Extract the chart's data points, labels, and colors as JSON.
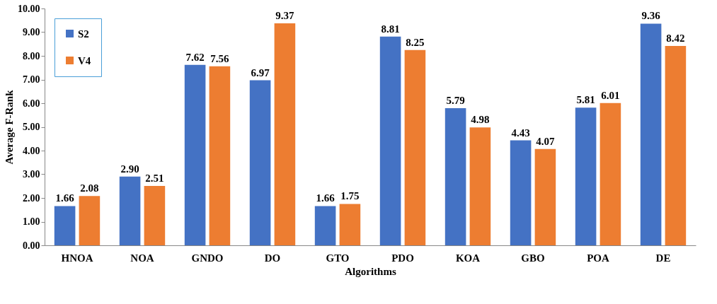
{
  "chart_data": {
    "type": "bar",
    "xlabel": "Algorithms",
    "ylabel": "Average F-Rank",
    "categories": [
      "HNOA",
      "NOA",
      "GNDO",
      "DO",
      "GTO",
      "PDO",
      "KOA",
      "GBO",
      "POA",
      "DE"
    ],
    "series": [
      {
        "name": "S2",
        "color": "#4472c4",
        "values": [
          1.66,
          2.9,
          7.62,
          6.97,
          1.66,
          8.81,
          5.79,
          4.43,
          5.81,
          9.36
        ]
      },
      {
        "name": "V4",
        "color": "#ed7d31",
        "values": [
          2.08,
          2.51,
          7.56,
          9.37,
          1.75,
          8.25,
          4.98,
          4.07,
          6.01,
          8.42
        ]
      }
    ],
    "value_labels": [
      [
        "1.66",
        "2.90",
        "7.62",
        "6.97",
        "1.66",
        "8.81",
        "5.79",
        "4.43",
        "5.81",
        "9.36"
      ],
      [
        "2.08",
        "2.51",
        "7.56",
        "9.37",
        "1.75",
        "8.25",
        "4.98",
        "4.07",
        "6.01",
        "8.42"
      ]
    ],
    "ylim": [
      0,
      10
    ],
    "yticks": [
      {
        "value": 0,
        "label": "0.00"
      },
      {
        "value": 1,
        "label": "1.00"
      },
      {
        "value": 2,
        "label": "2.00"
      },
      {
        "value": 3,
        "label": "3.00"
      },
      {
        "value": 4,
        "label": "4.00"
      },
      {
        "value": 5,
        "label": "5.00"
      },
      {
        "value": 6,
        "label": "6.00"
      },
      {
        "value": 7,
        "label": "7.00"
      },
      {
        "value": 8,
        "label": "8.00"
      },
      {
        "value": 9,
        "label": "9.00"
      },
      {
        "value": 10,
        "label": "10.00"
      }
    ],
    "legend": "top left",
    "grid": false
  }
}
